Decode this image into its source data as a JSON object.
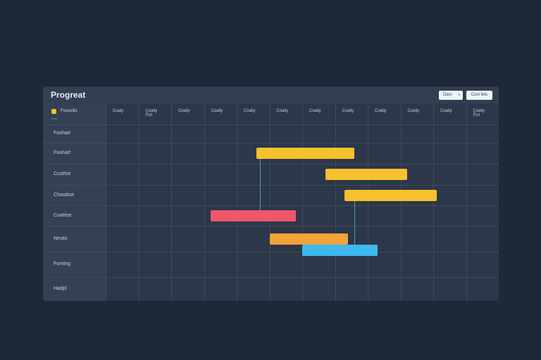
{
  "header": {
    "title": "Progreat",
    "view_button": "Dars",
    "action_button": "Cosl fets"
  },
  "first_column": {
    "title": "Fusoslits",
    "subtitle": "Bofol"
  },
  "columns": [
    {
      "label": "Coaly"
    },
    {
      "label": "Coaliy\nFisl"
    },
    {
      "label": "Coaliy"
    },
    {
      "label": "Coaliy"
    },
    {
      "label": "Coaliy"
    },
    {
      "label": "Coaliy"
    },
    {
      "label": "Coaliy"
    },
    {
      "label": "Coaliy"
    },
    {
      "label": "Coaliy"
    },
    {
      "label": "Coaliy"
    },
    {
      "label": "Coaliy"
    },
    {
      "label": "Coaliy\nFisl"
    }
  ],
  "rows": [
    {
      "label": "Foohart"
    },
    {
      "label": "Foohart"
    },
    {
      "label": "Custhot"
    },
    {
      "label": "Chastitse"
    },
    {
      "label": "Cuatitse"
    },
    {
      "label": "Nesits"
    },
    {
      "label": "Forritng"
    },
    {
      "label": "Hadpl"
    }
  ],
  "tasks": [
    {
      "row": 1,
      "start": 4.6,
      "end": 7.6,
      "color": "#f5c12e"
    },
    {
      "row": 2,
      "start": 6.7,
      "end": 9.2,
      "color": "#f5c12e"
    },
    {
      "row": 3,
      "start": 7.3,
      "end": 10.1,
      "color": "#f5c12e"
    },
    {
      "row": 4,
      "start": 3.2,
      "end": 5.8,
      "color": "#f0566a"
    },
    {
      "row": 5,
      "start": 5.0,
      "end": 7.4,
      "color": "#f2a23a"
    },
    {
      "row": 5.45,
      "start": 6.0,
      "end": 8.3,
      "color": "#3cb8ef"
    }
  ],
  "connectors": [
    {
      "x": 4.7,
      "from_row": 1,
      "to_row": 4
    },
    {
      "x": 7.6,
      "from_row": 3,
      "to_row": 5.45
    }
  ]
}
